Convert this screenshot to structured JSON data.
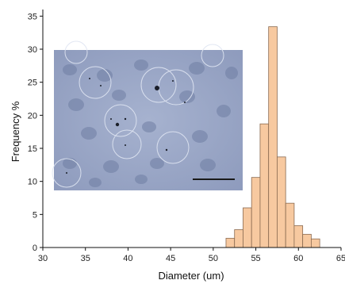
{
  "chart_data": {
    "type": "bar",
    "title": "",
    "xlabel": "Diameter (um)",
    "ylabel": "Frequency %",
    "xlim": [
      30,
      65
    ],
    "ylim": [
      0,
      36
    ],
    "xticks": [
      30,
      35,
      40,
      45,
      50,
      55,
      60,
      65
    ],
    "yticks": [
      0,
      5,
      10,
      15,
      20,
      25,
      30,
      35
    ],
    "bin_width": 1,
    "bins": [
      {
        "x": 52,
        "value": 1.4
      },
      {
        "x": 53,
        "value": 2.7
      },
      {
        "x": 54,
        "value": 6.0
      },
      {
        "x": 55,
        "value": 10.6
      },
      {
        "x": 56,
        "value": 18.7
      },
      {
        "x": 57,
        "value": 33.4
      },
      {
        "x": 58,
        "value": 13.7
      },
      {
        "x": 59,
        "value": 6.7
      },
      {
        "x": 60,
        "value": 3.3
      },
      {
        "x": 61,
        "value": 2.0
      },
      {
        "x": 62,
        "value": 1.3
      }
    ],
    "grid": false,
    "bar_color": "#f7c9a0",
    "bar_edge_color": "#8a6a50",
    "inset": {
      "kind": "micrograph",
      "description_colors": {
        "background": "#95a3c4"
      },
      "scale_bar": true
    }
  }
}
